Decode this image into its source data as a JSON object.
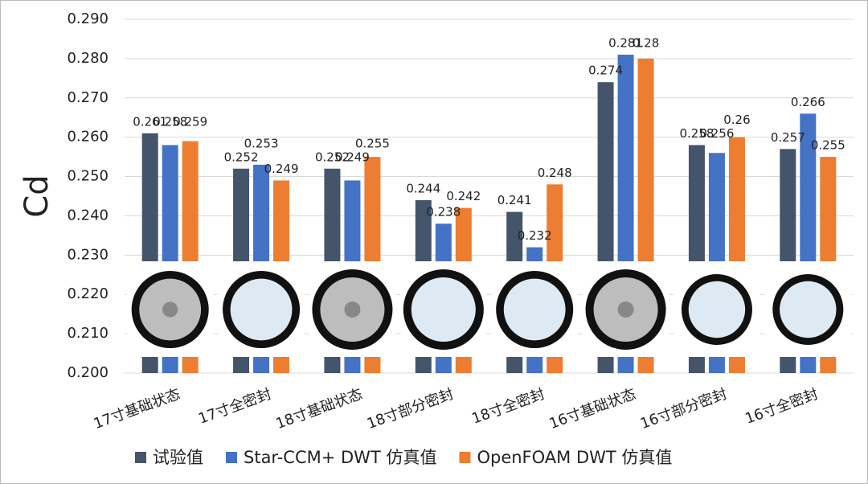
{
  "chart_data": {
    "type": "bar",
    "y_label": "Cd",
    "categories": [
      "17寸基础状态",
      "17寸全密封",
      "18寸基础状态",
      "18寸部分密封",
      "18寸全密封",
      "16寸基础状态",
      "16寸部分密封",
      "16寸全密封"
    ],
    "series": [
      {
        "name": "试验值",
        "color": "#44546a",
        "values": [
          0.261,
          0.252,
          0.252,
          0.244,
          0.241,
          0.274,
          0.258,
          0.257
        ]
      },
      {
        "name": "Star-CCM+ DWT 仿真值",
        "color": "#4472c4",
        "values": [
          0.258,
          0.253,
          0.249,
          0.238,
          0.232,
          0.281,
          0.256,
          0.266
        ]
      },
      {
        "name": "OpenFOAM DWT 仿真值",
        "color": "#ed7d31",
        "values": [
          0.259,
          0.249,
          0.255,
          0.242,
          0.248,
          0.28,
          0.26,
          0.255
        ]
      }
    ],
    "ylim": [
      0.2,
      0.29
    ],
    "yticks": [
      {
        "value": 0.2,
        "label": "0.200"
      },
      {
        "value": 0.21,
        "label": "0.210"
      },
      {
        "value": 0.22,
        "label": "0.220"
      },
      {
        "value": 0.23,
        "label": "0.230"
      },
      {
        "value": 0.24,
        "label": "0.240"
      },
      {
        "value": 0.25,
        "label": "0.250"
      },
      {
        "value": 0.26,
        "label": "0.260"
      },
      {
        "value": 0.27,
        "label": "0.270"
      },
      {
        "value": 0.28,
        "label": "0.280"
      },
      {
        "value": 0.29,
        "label": "0.290"
      }
    ],
    "grid": true,
    "legend": "bottom"
  }
}
